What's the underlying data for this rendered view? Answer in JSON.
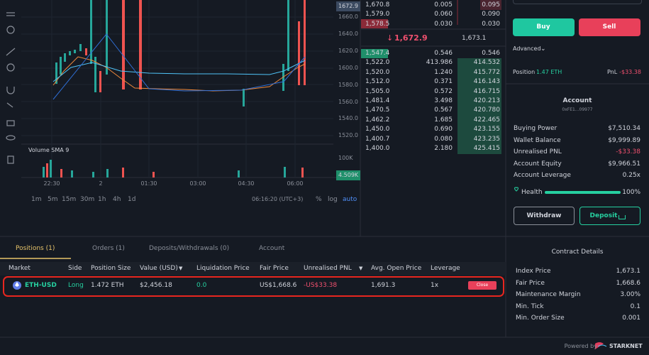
{
  "chart": {
    "current_price": "1672.9",
    "price_labels": [
      "1660.0",
      "1640.0",
      "1620.0",
      "1600.0",
      "1580.0",
      "1560.0",
      "1540.0",
      "1520.0"
    ],
    "volume_label": "Volume SMA 9",
    "volume_labels": [
      "100K",
      "4.509K"
    ],
    "time_labels": [
      "22:30",
      "2",
      "01:30",
      "03:00",
      "04:30",
      "06:00"
    ],
    "timeframes": [
      "1m",
      "5m",
      "15m",
      "30m",
      "1h",
      "4h",
      "1d"
    ],
    "clock": "06:16:20 (UTC+3)",
    "options": [
      "%",
      "log",
      "auto"
    ]
  },
  "orderbook": {
    "asks": [
      [
        "1,670.8",
        "0.005",
        "0.095"
      ],
      [
        "1,579.0",
        "0.060",
        "0.090"
      ],
      [
        "1,578.5",
        "0.030",
        "0.030"
      ]
    ],
    "last_price": "1,672.9",
    "mark_price": "1,673.1",
    "bids": [
      [
        "1,547.4",
        "0.546",
        "0.546"
      ],
      [
        "1,522.0",
        "413.986",
        "414.532"
      ],
      [
        "1,520.0",
        "1.240",
        "415.772"
      ],
      [
        "1,512.0",
        "0.371",
        "416.143"
      ],
      [
        "1,505.0",
        "0.572",
        "416.715"
      ],
      [
        "1,481.4",
        "3.498",
        "420.213"
      ],
      [
        "1,470.5",
        "0.567",
        "420.780"
      ],
      [
        "1,462.2",
        "1.685",
        "422.465"
      ],
      [
        "1,450.0",
        "0.690",
        "423.155"
      ],
      [
        "1,400.7",
        "0.080",
        "423.235"
      ],
      [
        "1,400.0",
        "2.180",
        "425.415"
      ]
    ]
  },
  "trade": {
    "buy": "Buy",
    "sell": "Sell",
    "advanced": "Advanced",
    "position_label": "Position",
    "position_value": "1.47 ETH",
    "pnl_label": "PnL",
    "pnl_value": "-$33.38"
  },
  "account": {
    "title": "Account",
    "address": "0xFE1...09977",
    "rows": [
      [
        "Buying Power",
        "$7,510.34"
      ],
      [
        "Wallet Balance",
        "$9,999.89"
      ],
      [
        "Unrealised PNL",
        "-$33.38"
      ],
      [
        "Account Equity",
        "$9,966.51"
      ],
      [
        "Account Leverage",
        "0.25x"
      ]
    ],
    "health_label": "Health",
    "health_value": "100%",
    "withdraw": "Withdraw",
    "deposit": "Deposit"
  },
  "positions": {
    "tabs": [
      "Positions (1)",
      "Orders (1)",
      "Deposits/Withdrawals (0)",
      "Account"
    ],
    "headers": [
      "Market",
      "Side",
      "Position Size",
      "Value (USD)",
      "Liquidation Price",
      "Fair Price",
      "Unrealised PNL",
      "Avg. Open Price",
      "Leverage"
    ],
    "rows": [
      [
        "ETH-USD",
        "Long",
        "1.472 ETH",
        "$2,456.18",
        "0.0",
        "US$1,668.6",
        "-US$33.38",
        "1,691.3",
        "1x"
      ]
    ],
    "close": "Close"
  },
  "contract": {
    "title": "Contract Details",
    "rows": [
      [
        "Index Price",
        "1,673.1"
      ],
      [
        "Fair Price",
        "1,668.6"
      ],
      [
        "Maintenance Margin",
        "3.00%"
      ],
      [
        "Min. Tick",
        "0.1"
      ],
      [
        "Min. Order Size",
        "0.001"
      ]
    ]
  },
  "footer": {
    "powered_by": "Powered by",
    "brand": "STARKNET"
  }
}
